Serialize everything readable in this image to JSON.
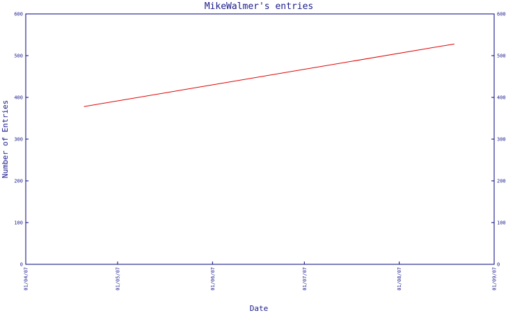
{
  "chart_data": {
    "type": "line",
    "title": "MikeWalmer's entries",
    "xlabel": "Date",
    "ylabel": "Number of Entries",
    "x_ticks": [
      "01/04/07",
      "01/05/07",
      "01/06/07",
      "01/07/07",
      "01/08/07",
      "01/09/07"
    ],
    "y_ticks": [
      "0",
      "100",
      "200",
      "300",
      "400",
      "500",
      "600"
    ],
    "ylim": [
      0,
      600
    ],
    "xlim": [
      "2007-04-01",
      "2007-09-01"
    ],
    "series": [
      {
        "color": "#e00000",
        "points": [
          {
            "x": "2007-04-20",
            "y": 378
          },
          {
            "x": "2007-08-19",
            "y": 528
          }
        ]
      }
    ],
    "axis_color": "#00007f",
    "grid": false,
    "right_axis_mirror": true
  }
}
